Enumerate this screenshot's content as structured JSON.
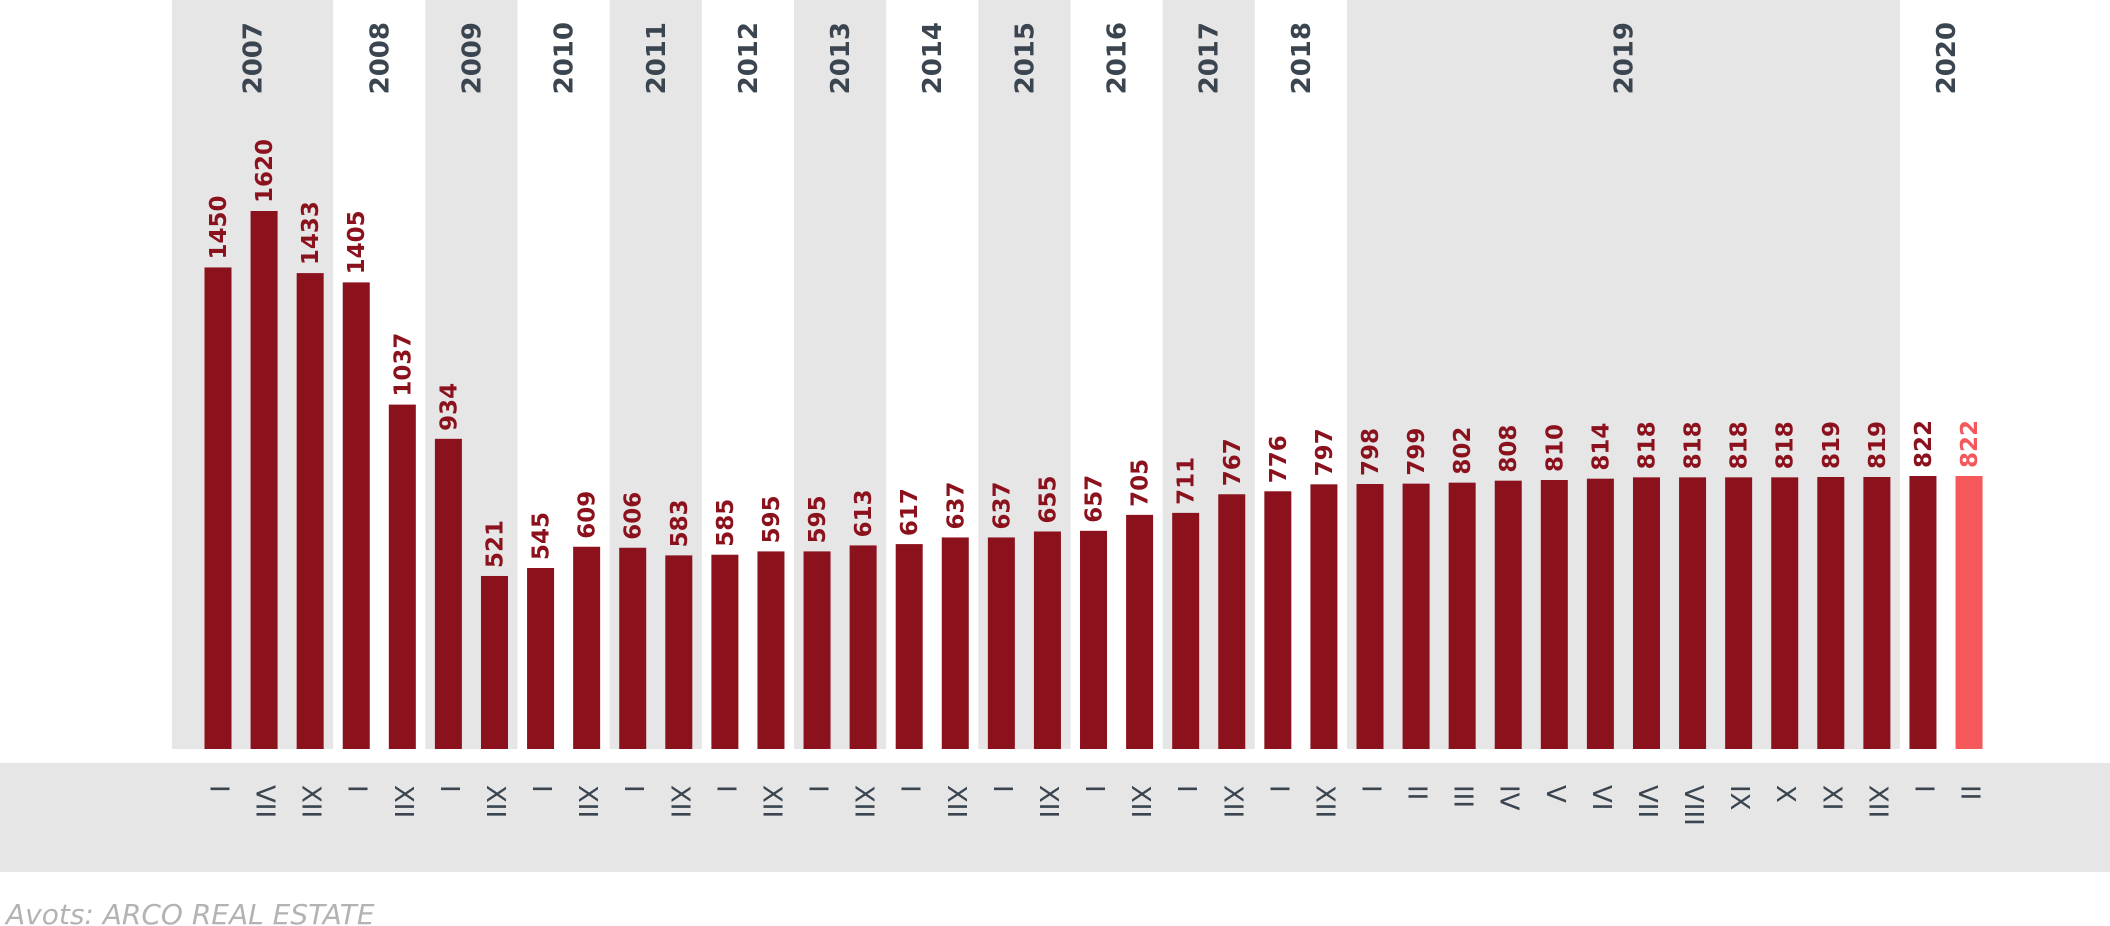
{
  "chart_data": {
    "type": "bar",
    "categories": [
      "I",
      "VII",
      "XII",
      "I",
      "XII",
      "I",
      "XII",
      "I",
      "XII",
      "I",
      "XII",
      "I",
      "XII",
      "I",
      "XII",
      "I",
      "XII",
      "I",
      "XII",
      "I",
      "XII",
      "I",
      "XII",
      "I",
      "XII",
      "I",
      "II",
      "III",
      "IV",
      "V",
      "VI",
      "VII",
      "VIII",
      "IX",
      "X",
      "XI",
      "XII",
      "I",
      "II"
    ],
    "years": [
      "2007",
      "2007",
      "2007",
      "2008",
      "2008",
      "2009",
      "2009",
      "2010",
      "2010",
      "2011",
      "2011",
      "2012",
      "2012",
      "2013",
      "2013",
      "2014",
      "2014",
      "2015",
      "2015",
      "2016",
      "2016",
      "2017",
      "2017",
      "2018",
      "2018",
      "2019",
      "2019",
      "2019",
      "2019",
      "2019",
      "2019",
      "2019",
      "2019",
      "2019",
      "2019",
      "2019",
      "2019",
      "2020",
      "2020"
    ],
    "values": [
      1450,
      1620,
      1433,
      1405,
      1037,
      934,
      521,
      545,
      609,
      606,
      583,
      585,
      595,
      595,
      613,
      617,
      637,
      637,
      655,
      657,
      705,
      711,
      767,
      776,
      797,
      798,
      799,
      802,
      808,
      810,
      814,
      818,
      818,
      818,
      818,
      819,
      819,
      822,
      822
    ],
    "colors": [
      "#8b111c",
      "#8b111c",
      "#8b111c",
      "#8b111c",
      "#8b111c",
      "#8b111c",
      "#8b111c",
      "#8b111c",
      "#8b111c",
      "#8b111c",
      "#8b111c",
      "#8b111c",
      "#8b111c",
      "#8b111c",
      "#8b111c",
      "#8b111c",
      "#8b111c",
      "#8b111c",
      "#8b111c",
      "#8b111c",
      "#8b111c",
      "#8b111c",
      "#8b111c",
      "#8b111c",
      "#8b111c",
      "#8b111c",
      "#8b111c",
      "#8b111c",
      "#8b111c",
      "#8b111c",
      "#8b111c",
      "#8b111c",
      "#8b111c",
      "#8b111c",
      "#8b111c",
      "#8b111c",
      "#8b111c",
      "#8b111c",
      "#f5585a"
    ],
    "source": "Avots: ARCO REAL ESTATE"
  }
}
